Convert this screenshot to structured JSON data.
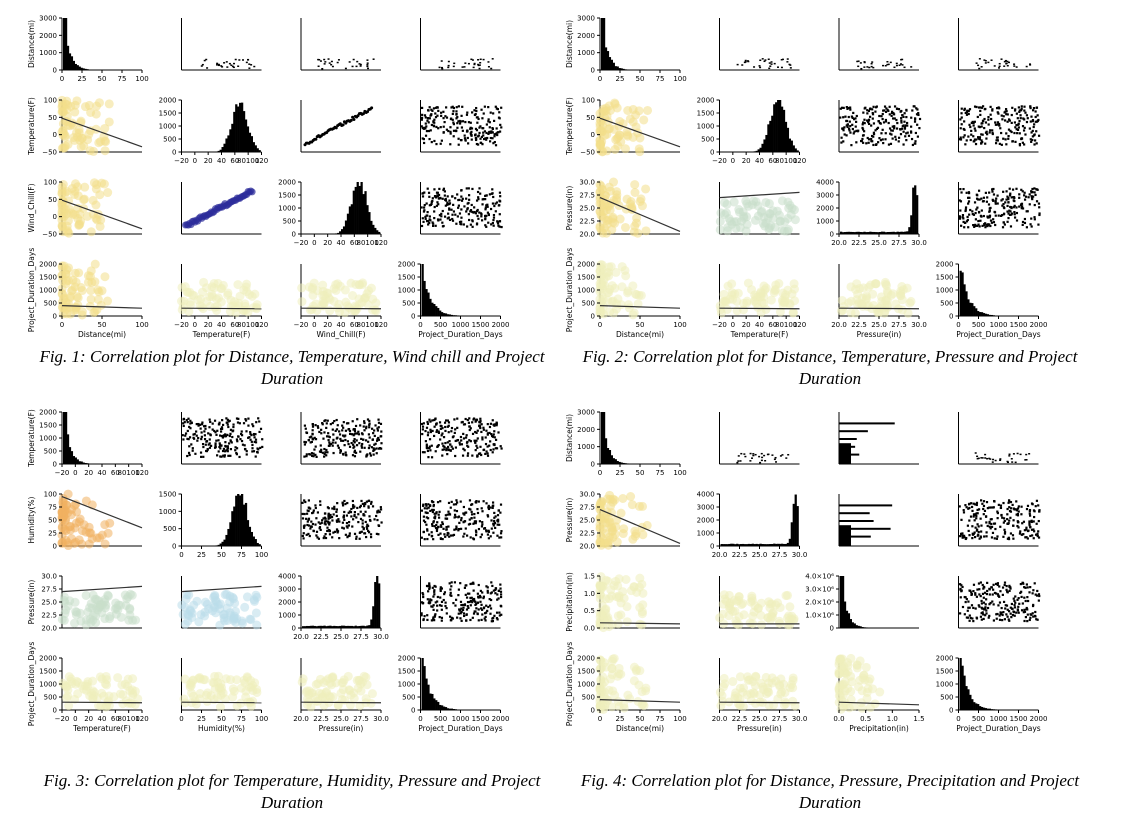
{
  "colors": {
    "axis": "#000000",
    "hist": "#000000",
    "yellow": "#f2df8a",
    "lightyellow": "#eeeebb",
    "orange": "#f0b060",
    "green": "#c9dfcb",
    "blue": "#b9dcea",
    "navy": "#2c2c9a",
    "line": "#333333"
  },
  "chart_data": [
    {
      "type": "scatter",
      "caption": "Fig. 1: Correlation plot for Distance, Temperature, Wind chill and Project Duration",
      "variables": [
        "Distance(mi)",
        "Temperature(F)",
        "Wind_Chill(F)",
        "Project_Duration_Days"
      ],
      "panels": [
        {
          "kind": "hist",
          "ylabel": "Distance(mi)",
          "yticks": [
            "3000",
            "2000",
            "1000",
            "0"
          ],
          "xticks": [
            "0",
            "25",
            "50",
            "75",
            "100"
          ]
        },
        {
          "kind": "sparse"
        },
        {
          "kind": "sparse"
        },
        {
          "kind": "sparse"
        },
        {
          "kind": "scatter",
          "color": "yellow",
          "ylabel": "Temperature(F)",
          "yticks": [
            "100",
            "50",
            "0",
            "−50"
          ],
          "trend": [
            0.35,
            0.9
          ]
        },
        {
          "kind": "hist",
          "yticks": [
            "2000",
            "1500",
            "1000",
            "500",
            "0"
          ],
          "xticks": [
            "−20",
            "0",
            "20",
            "40",
            "60",
            "80100",
            "120"
          ]
        },
        {
          "kind": "diag"
        },
        {
          "kind": "dense"
        },
        {
          "kind": "scatter",
          "color": "yellow",
          "ylabel": "Wind_Chill(F)",
          "yticks": [
            "100",
            "50",
            "0",
            "−50"
          ],
          "trend": [
            0.35,
            0.9
          ]
        },
        {
          "kind": "diagblue"
        },
        {
          "kind": "hist",
          "yticks": [
            "2000",
            "1500",
            "1000",
            "500",
            "0"
          ],
          "xticks": [
            "−20",
            "0",
            "20",
            "40",
            "60",
            "80100",
            "120"
          ]
        },
        {
          "kind": "dense"
        },
        {
          "kind": "scatter",
          "color": "yellow",
          "ylabel": "Project_Duration_Days",
          "yticks": [
            "2000",
            "1500",
            "1000",
            "500",
            "0"
          ],
          "xticks": [
            "0",
            "50",
            "100"
          ],
          "xlabel": "Distance(mi)",
          "trend": [
            0.8,
            0.85
          ]
        },
        {
          "kind": "blob",
          "color": "lightyellow",
          "xticks": [
            "−20",
            "0",
            "20",
            "40",
            "60",
            "80100",
            "120"
          ],
          "xlabel": "Temperature(F)",
          "trend": [
            0.85,
            0.86
          ]
        },
        {
          "kind": "blob",
          "color": "lightyellow",
          "xticks": [
            "−20",
            "0",
            "20",
            "40",
            "60",
            "80100",
            "120"
          ],
          "xlabel": "Wind_Chill(F)",
          "trend": [
            0.85,
            0.86
          ]
        },
        {
          "kind": "hist",
          "yticks": [
            "2000",
            "1500",
            "1000",
            "500",
            "0"
          ],
          "xticks": [
            "0",
            "500",
            "1000",
            "1500",
            "2000"
          ],
          "xlabel": "Project_Duration_Days"
        }
      ]
    },
    {
      "type": "scatter",
      "caption": "Fig. 2: Correlation plot for Distance, Temperature, Pressure and Project Duration",
      "variables": [
        "Distance(mi)",
        "Temperature(F)",
        "Pressure(in)",
        "Project_Duration_Days"
      ],
      "panels": [
        {
          "kind": "hist",
          "ylabel": "Distance(mi)",
          "yticks": [
            "3000",
            "2000",
            "1000",
            "0"
          ],
          "xticks": [
            "0",
            "25",
            "50",
            "75",
            "100"
          ]
        },
        {
          "kind": "sparse"
        },
        {
          "kind": "sparse"
        },
        {
          "kind": "sparse"
        },
        {
          "kind": "scatter",
          "color": "yellow",
          "ylabel": "Temperature(F)",
          "yticks": [
            "100",
            "50",
            "0",
            "−50"
          ],
          "trend": [
            0.35,
            0.9
          ]
        },
        {
          "kind": "hist",
          "yticks": [
            "2000",
            "1500",
            "1000",
            "500",
            "0"
          ],
          "xticks": [
            "−20",
            "0",
            "20",
            "40",
            "60",
            "80100",
            "120"
          ]
        },
        {
          "kind": "dense"
        },
        {
          "kind": "dense"
        },
        {
          "kind": "scatter",
          "color": "yellow",
          "ylabel": "Pressure(in)",
          "yticks": [
            "30.0",
            "27.5",
            "25.0",
            "22.5",
            "20.0"
          ],
          "trend": [
            0.3,
            0.95
          ]
        },
        {
          "kind": "blob",
          "color": "green",
          "trend": [
            0.3,
            0.2
          ]
        },
        {
          "kind": "hist",
          "yticks": [
            "4000",
            "3000",
            "2000",
            "1000",
            "0"
          ],
          "xticks": [
            "20.0",
            "22.5",
            "25.0",
            "27.5",
            "30.0"
          ]
        },
        {
          "kind": "dense"
        },
        {
          "kind": "scatter",
          "color": "lightyellow",
          "ylabel": "Project_Duration_Days",
          "yticks": [
            "2000",
            "1500",
            "1000",
            "500",
            "0"
          ],
          "xticks": [
            "0",
            "50",
            "100"
          ],
          "xlabel": "Distance(mi)",
          "trend": [
            0.8,
            0.85
          ]
        },
        {
          "kind": "blob",
          "color": "lightyellow",
          "xticks": [
            "−20",
            "0",
            "20",
            "40",
            "60",
            "80100",
            "120"
          ],
          "xlabel": "Temperature(F)",
          "trend": [
            0.85,
            0.86
          ]
        },
        {
          "kind": "blob",
          "color": "lightyellow",
          "xticks": [
            "20.0",
            "22.5",
            "25.0",
            "27.5",
            "30.0"
          ],
          "xlabel": "Pressure(in)",
          "trend": [
            0.85,
            0.86
          ]
        },
        {
          "kind": "hist",
          "yticks": [
            "2000",
            "1500",
            "1000",
            "500",
            "0"
          ],
          "xticks": [
            "0",
            "500",
            "1000",
            "1500",
            "2000"
          ],
          "xlabel": "Project_Duration_Days"
        }
      ]
    },
    {
      "type": "scatter",
      "caption": "Fig. 3: Correlation plot for Temperature, Humidity, Pressure and Project Duration",
      "variables": [
        "Temperature(F)",
        "Humidity(%)",
        "Pressure(in)",
        "Project_Duration_Days"
      ],
      "panels": [
        {
          "kind": "hist",
          "ylabel": "Temperature(F)",
          "yticks": [
            "2000",
            "1500",
            "1000",
            "500",
            "0"
          ],
          "xticks": [
            "−20",
            "0",
            "20",
            "40",
            "60",
            "80100",
            "120"
          ]
        },
        {
          "kind": "dense"
        },
        {
          "kind": "dense"
        },
        {
          "kind": "dense"
        },
        {
          "kind": "scatter",
          "color": "orange",
          "ylabel": "Humidity(%)",
          "yticks": [
            "100",
            "75",
            "50",
            "25",
            "0"
          ],
          "trend": [
            0.05,
            0.65
          ]
        },
        {
          "kind": "hist",
          "yticks": [
            "1500",
            "1000",
            "500",
            "0"
          ],
          "xticks": [
            "0",
            "25",
            "50",
            "75",
            "100"
          ]
        },
        {
          "kind": "dense"
        },
        {
          "kind": "dense"
        },
        {
          "kind": "blob",
          "color": "green",
          "ylabel": "Pressure(in)",
          "yticks": [
            "30.0",
            "27.5",
            "25.0",
            "22.5",
            "20.0"
          ],
          "trend": [
            0.3,
            0.2
          ]
        },
        {
          "kind": "blob",
          "color": "blue",
          "trend": [
            0.3,
            0.2
          ]
        },
        {
          "kind": "hist",
          "yticks": [
            "4000",
            "3000",
            "2000",
            "1000",
            "0"
          ],
          "xticks": [
            "20.0",
            "22.5",
            "25.0",
            "27.5",
            "30.0"
          ]
        },
        {
          "kind": "dense"
        },
        {
          "kind": "blob",
          "color": "lightyellow",
          "ylabel": "Project_Duration_Days",
          "yticks": [
            "2000",
            "1500",
            "1000",
            "500",
            "0"
          ],
          "xticks": [
            "−20",
            "0",
            "20",
            "40",
            "60",
            "80100",
            "120"
          ],
          "xlabel": "Temperature(F)",
          "trend": [
            0.85,
            0.86
          ]
        },
        {
          "kind": "blob",
          "color": "lightyellow",
          "xticks": [
            "0",
            "25",
            "50",
            "75",
            "100"
          ],
          "xlabel": "Humidity(%)",
          "trend": [
            0.85,
            0.86
          ]
        },
        {
          "kind": "blob",
          "color": "lightyellow",
          "xticks": [
            "20.0",
            "22.5",
            "25.0",
            "27.5",
            "30.0"
          ],
          "xlabel": "Pressure(in)",
          "trend": [
            0.85,
            0.86
          ]
        },
        {
          "kind": "hist",
          "yticks": [
            "2000",
            "1500",
            "1000",
            "500",
            "0"
          ],
          "xticks": [
            "0",
            "500",
            "1000",
            "1500",
            "2000"
          ],
          "xlabel": "Project_Duration_Days"
        }
      ]
    },
    {
      "type": "scatter",
      "caption": "Fig. 4: Correlation plot for Distance, Pressure, Precipitation and Project Duration",
      "variables": [
        "Distance(mi)",
        "Pressure(in)",
        "Precipitation(in)",
        "Project_Duration_Days"
      ],
      "panels": [
        {
          "kind": "hist",
          "ylabel": "Distance(mi)",
          "yticks": [
            "3000",
            "2000",
            "1000",
            "0"
          ],
          "xticks": [
            "0",
            "25",
            "50",
            "75",
            "100"
          ]
        },
        {
          "kind": "sparse"
        },
        {
          "kind": "bars"
        },
        {
          "kind": "sparse"
        },
        {
          "kind": "scatter",
          "color": "yellow",
          "ylabel": "Pressure(in)",
          "yticks": [
            "30.0",
            "27.5",
            "25.0",
            "22.5",
            "20.0"
          ],
          "trend": [
            0.3,
            0.95
          ]
        },
        {
          "kind": "hist",
          "yticks": [
            "4000",
            "3000",
            "2000",
            "1000",
            "0"
          ],
          "xticks": [
            "20.0",
            "22.5",
            "25.0",
            "27.5",
            "30.0"
          ]
        },
        {
          "kind": "bars"
        },
        {
          "kind": "dense"
        },
        {
          "kind": "scatter",
          "color": "lightyellow",
          "ylabel": "Precipitation(in)",
          "yticks": [
            "1.5",
            "1.0",
            "0.5",
            "0.0"
          ],
          "trend": [
            0.9,
            0.92
          ]
        },
        {
          "kind": "blob",
          "color": "lightyellow",
          "trend": [
            0.92,
            0.92
          ]
        },
        {
          "kind": "hist",
          "yticks": [
            "4.0×10⁶",
            "3.0×10⁶",
            "2.0×10⁶",
            "1.0×10⁶",
            "0"
          ]
        },
        {
          "kind": "dense"
        },
        {
          "kind": "scatter",
          "color": "lightyellow",
          "ylabel": "Project_Duration_Days",
          "yticks": [
            "2000",
            "1500",
            "1000",
            "500",
            "0"
          ],
          "xticks": [
            "0",
            "25",
            "50",
            "75",
            "100"
          ],
          "xlabel": "Distance(mi)",
          "trend": [
            0.8,
            0.85
          ]
        },
        {
          "kind": "blob",
          "color": "lightyellow",
          "xticks": [
            "20.0",
            "22.5",
            "25.0",
            "27.5",
            "30.0"
          ],
          "xlabel": "Pressure(in)",
          "trend": [
            0.85,
            0.86
          ]
        },
        {
          "kind": "scatter",
          "color": "lightyellow",
          "xticks": [
            "0.0",
            "0.5",
            "1.0",
            "1.5"
          ],
          "xlabel": "Precipitation(in)",
          "trend": [
            0.85,
            0.9
          ]
        },
        {
          "kind": "hist",
          "yticks": [
            "2000",
            "1500",
            "1000",
            "500",
            "0"
          ],
          "xticks": [
            "0",
            "500",
            "1000",
            "1500",
            "2000"
          ],
          "xlabel": "Project_Duration_Days"
        }
      ]
    }
  ]
}
